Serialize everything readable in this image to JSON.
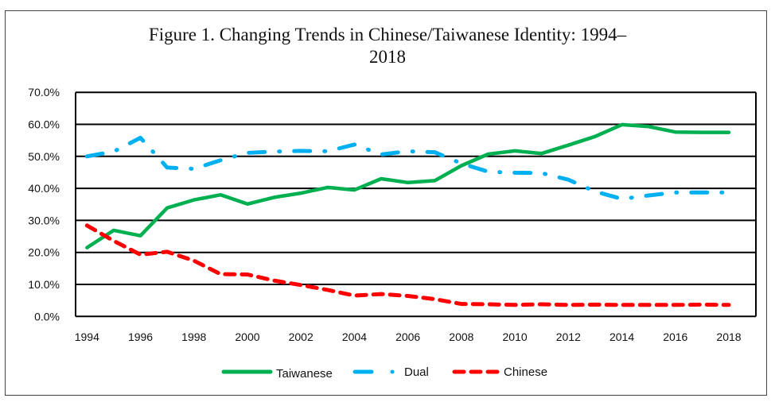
{
  "chart_data": {
    "type": "line",
    "title": "Figure 1. Changing Trends in Chinese/Taiwanese Identity: 1994–2018",
    "title_lines": [
      "Figure 1. Changing Trends in Chinese/Taiwanese Identity: 1994–",
      "2018"
    ],
    "xlabel": "",
    "ylabel": "",
    "x": [
      1994,
      1995,
      1996,
      1997,
      1998,
      1999,
      2000,
      2001,
      2002,
      2003,
      2004,
      2005,
      2006,
      2007,
      2008,
      2009,
      2010,
      2011,
      2012,
      2013,
      2014,
      2015,
      2016,
      2017,
      2018
    ],
    "x_tick_labels": [
      "1994",
      "1996",
      "1998",
      "2000",
      "2002",
      "2004",
      "2006",
      "2008",
      "2010",
      "2012",
      "2014",
      "2016",
      "2018"
    ],
    "y_tick_labels": [
      "0.0%",
      "10.0%",
      "20.0%",
      "30.0%",
      "40.0%",
      "50.0%",
      "60.0%",
      "70.0%"
    ],
    "ylim": [
      0,
      70
    ],
    "grid": "horizontal",
    "legend_position": "bottom",
    "series": [
      {
        "name": "Taiwanese",
        "color": "#00B050",
        "style": "solid",
        "values": [
          21.5,
          26.9,
          25.2,
          33.9,
          36.4,
          38.0,
          35.1,
          37.2,
          38.5,
          40.3,
          39.5,
          43.0,
          41.8,
          42.4,
          47.1,
          50.7,
          51.7,
          50.9,
          53.5,
          56.2,
          59.9,
          59.3,
          57.6,
          57.5,
          57.5
        ]
      },
      {
        "name": "Dual",
        "color": "#00B0F0",
        "style": "dash-dot",
        "values": [
          50.0,
          51.5,
          55.8,
          46.5,
          46.1,
          48.8,
          51.1,
          51.5,
          51.7,
          51.6,
          53.7,
          50.6,
          51.6,
          51.3,
          47.8,
          45.2,
          44.9,
          44.8,
          42.7,
          39.0,
          36.7,
          37.8,
          38.7,
          38.7,
          38.7
        ]
      },
      {
        "name": "Chinese",
        "color": "#FF0000",
        "style": "dashed",
        "values": [
          28.4,
          23.6,
          19.3,
          20.2,
          17.4,
          13.2,
          13.1,
          11.2,
          9.8,
          8.3,
          6.5,
          7.0,
          6.4,
          5.4,
          3.9,
          3.8,
          3.6,
          3.8,
          3.6,
          3.7,
          3.6,
          3.6,
          3.6,
          3.7,
          3.6
        ]
      }
    ]
  }
}
